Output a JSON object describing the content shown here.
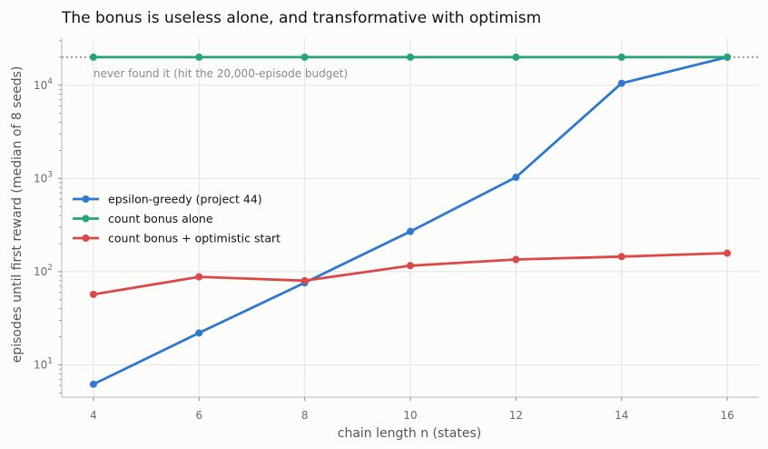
{
  "chart_data": {
    "type": "line",
    "title": "The bonus is useless alone, and transformative with optimism",
    "xlabel": "chain length n (states)",
    "ylabel": "episodes until first reward (median of 8 seeds)",
    "x": [
      4,
      6,
      8,
      10,
      12,
      14,
      16
    ],
    "xlim": [
      3.4,
      16.6
    ],
    "xticks": [
      "4",
      "6",
      "8",
      "10",
      "12",
      "14",
      "16"
    ],
    "yscale": "log",
    "ylim": [
      4.5,
      32000
    ],
    "yticks": [
      {
        "value": 10,
        "base": "10",
        "exp": "1"
      },
      {
        "value": 100,
        "base": "10",
        "exp": "2"
      },
      {
        "value": 1000,
        "base": "10",
        "exp": "3"
      },
      {
        "value": 10000,
        "base": "10",
        "exp": "4"
      }
    ],
    "grid": true,
    "legend_position": "center-left",
    "series": [
      {
        "name": "epsilon-greedy (project 44)",
        "color": "#2f78d0",
        "values": [
          6.2,
          22,
          76,
          270,
          1030,
          10500,
          20000
        ]
      },
      {
        "name": "count bonus alone",
        "color": "#27a37a",
        "values": [
          20000,
          20000,
          20000,
          20000,
          20000,
          20000,
          20000
        ]
      },
      {
        "name": "count bonus + optimistic start",
        "color": "#dc4848",
        "values": [
          57,
          88,
          80,
          116,
          135,
          145,
          158
        ]
      }
    ],
    "budget_line": {
      "value": 20000,
      "label": "never found it (hit the 20,000-episode budget)",
      "color": "#888888"
    }
  }
}
